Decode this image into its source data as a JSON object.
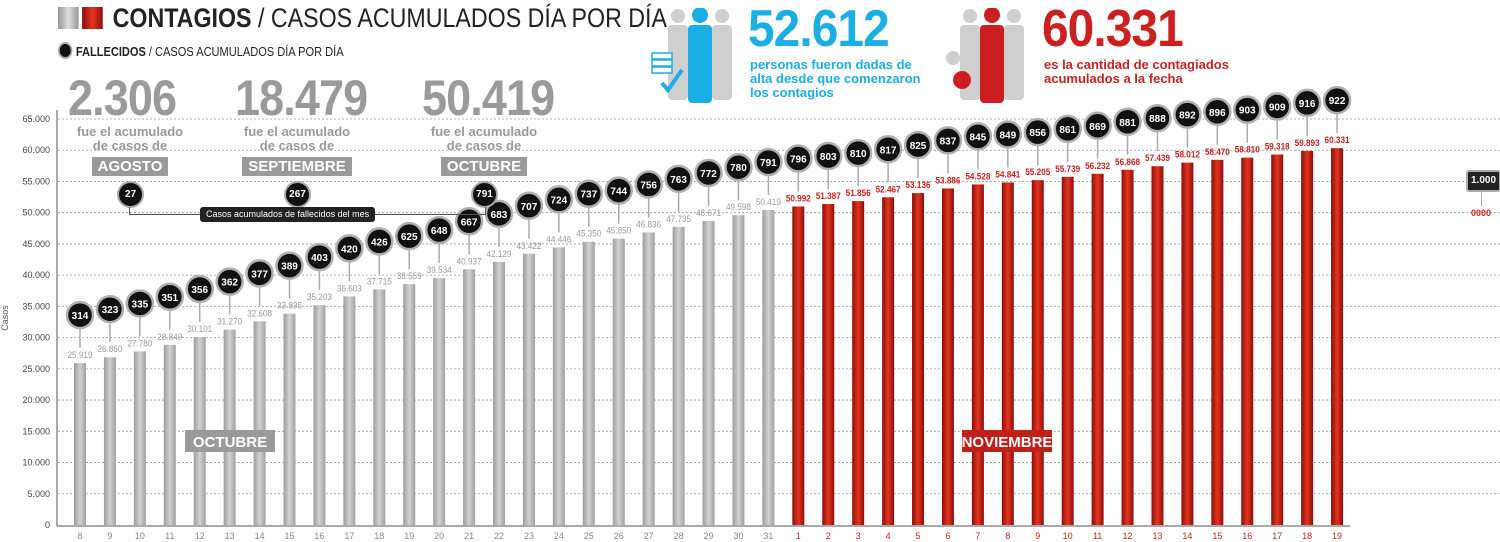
{
  "header": {
    "title_bold": "CONTAGIOS",
    "title_rest": " / CASOS ACUMULADOS DÍA POR DÍA",
    "subtitle_bold": "FALLECIDOS",
    "subtitle_rest": " / CASOS ACUMULADOS DÍA POR DÍA"
  },
  "months": [
    {
      "total": "2.306",
      "text1": "fue el acumulado",
      "text2": "de casos de",
      "month": "AGOSTO",
      "deaths": "27"
    },
    {
      "total": "18.479",
      "text1": "fue el acumulado",
      "text2": "de casos de",
      "month": "SEPTIEMBRE",
      "deaths": "267"
    },
    {
      "total": "50.419",
      "text1": "fue el acumulado",
      "text2": "de casos de",
      "month": "OCTUBRE",
      "deaths": "791"
    }
  ],
  "month_deaths_label": "Casos acumulados de fallecidos del mes",
  "stats": {
    "recovered": {
      "value": "52.612",
      "text": [
        "personas fueron dadas de",
        "alta desde que comenzaron",
        "los contagios"
      ],
      "color": "#1aaee5"
    },
    "infected": {
      "value": "60.331",
      "text": [
        "es la cantidad de contagiados",
        "acumulados a la fecha"
      ],
      "color": "#cc1f1f"
    }
  },
  "legend_key": {
    "deaths": "1.000",
    "cases": "0000"
  },
  "chart_data": {
    "type": "bar",
    "ylabel": "Casos",
    "ylim": [
      0,
      65000
    ],
    "yticks": [
      "0",
      "5.000",
      "10.000",
      "15.000",
      "20.000",
      "25.000",
      "30.000",
      "35.000",
      "40.000",
      "45.000",
      "50.000",
      "55.000",
      "60.000",
      "65.000"
    ],
    "grid": true,
    "period_labels": [
      "OCTUBRE",
      "NOVIEMBRE"
    ],
    "colors": {
      "octubre": "#b5b5b5",
      "noviembre": "#c0201a",
      "deaths_marker": "#111111"
    },
    "series": [
      {
        "period": "OCTUBRE",
        "categories": [
          "8",
          "9",
          "10",
          "11",
          "12",
          "13",
          "14",
          "15",
          "16",
          "17",
          "18",
          "19",
          "20",
          "21",
          "22",
          "23",
          "24",
          "25",
          "26",
          "27",
          "28",
          "29",
          "30",
          "31"
        ],
        "cases": [
          25919,
          26860,
          27780,
          28849,
          30101,
          31270,
          32608,
          33835,
          35203,
          36603,
          37715,
          38559,
          39534,
          40937,
          42129,
          43422,
          44446,
          45350,
          45850,
          46836,
          47735,
          48671,
          49598,
          50419
        ],
        "case_labels": [
          "25.919",
          "26.860",
          "27.780",
          "28.849",
          "30.101",
          "31.270",
          "32.608",
          "33.835",
          "35.203",
          "36.603",
          "37.715",
          "38.559",
          "39.534",
          "40.937",
          "42.129",
          "43.422",
          "44.446",
          "45.350",
          "45.850",
          "46.836",
          "47.735",
          "48.671",
          "49.598",
          "50.419"
        ],
        "deaths": [
          314,
          323,
          335,
          351,
          356,
          362,
          377,
          389,
          403,
          420,
          426,
          625,
          648,
          667,
          683,
          707,
          724,
          737,
          744,
          756,
          763,
          772,
          780,
          791
        ]
      },
      {
        "period": "NOVIEMBRE",
        "categories": [
          "1",
          "2",
          "3",
          "4",
          "5",
          "6",
          "7",
          "8",
          "9",
          "10",
          "11",
          "12",
          "13",
          "14",
          "15",
          "16",
          "17",
          "18",
          "19"
        ],
        "cases": [
          50992,
          51387,
          51856,
          52467,
          53136,
          53886,
          54528,
          54841,
          55205,
          55739,
          56232,
          56868,
          57439,
          58012,
          58470,
          58810,
          59318,
          59893,
          60331
        ],
        "case_labels": [
          "50.992",
          "51.387",
          "51.856",
          "52.467",
          "53.136",
          "53.886",
          "54.528",
          "54.841",
          "55.205",
          "55.739",
          "56.232",
          "56.868",
          "57.439",
          "58.012",
          "58.470",
          "58.810",
          "59.318",
          "59.893",
          "60.331"
        ],
        "deaths": [
          796,
          803,
          810,
          817,
          825,
          837,
          845,
          849,
          856,
          861,
          869,
          881,
          888,
          892,
          896,
          903,
          909,
          916,
          922
        ]
      }
    ]
  }
}
